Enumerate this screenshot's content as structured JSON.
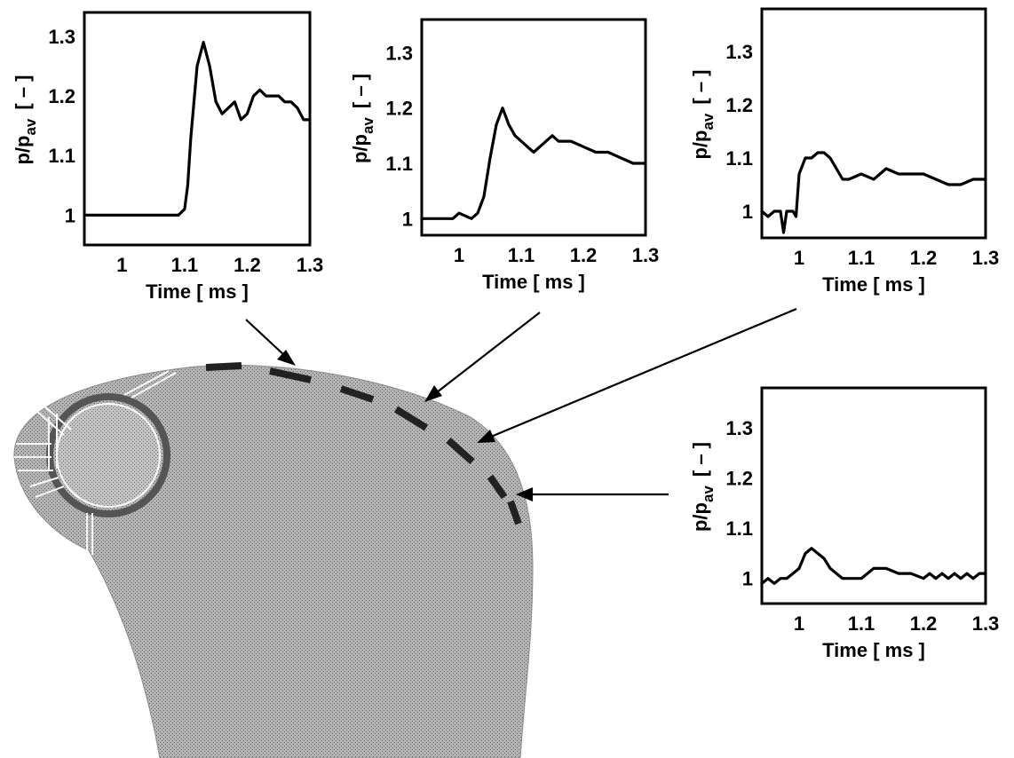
{
  "colors": {
    "body_fill": "#aaaaaa",
    "ink": "#000000",
    "background": "#ffffff"
  },
  "chart_data": [
    {
      "type": "line",
      "title": "",
      "xlabel": "Time [ ms ]",
      "ylabel": "p/p",
      "ylabel_sub": "av",
      "ylabel_unit": "[ – ]",
      "xlim": [
        0.94,
        1.3
      ],
      "ylim": [
        0.95,
        1.34
      ],
      "xticks": [
        "1",
        "1.1",
        "1.2",
        "1.3"
      ],
      "yticks": [
        "1",
        "1.1",
        "1.2",
        "1.3"
      ],
      "series": [
        {
          "x": [
            0.94,
            1.0,
            1.05,
            1.09,
            1.1,
            1.105,
            1.11,
            1.12,
            1.13,
            1.14,
            1.15,
            1.16,
            1.17,
            1.18,
            1.19,
            1.2,
            1.21,
            1.22,
            1.23,
            1.24,
            1.25,
            1.26,
            1.27,
            1.28,
            1.29,
            1.3
          ],
          "y": [
            1.0,
            1.0,
            1.0,
            1.0,
            1.01,
            1.05,
            1.13,
            1.25,
            1.29,
            1.25,
            1.19,
            1.17,
            1.18,
            1.19,
            1.16,
            1.17,
            1.2,
            1.21,
            1.2,
            1.2,
            1.2,
            1.19,
            1.19,
            1.18,
            1.16,
            1.16
          ]
        }
      ]
    },
    {
      "type": "line",
      "title": "",
      "xlabel": "Time [ ms ]",
      "ylabel": "p/p",
      "ylabel_sub": "av",
      "ylabel_unit": "[ – ]",
      "xlim": [
        0.94,
        1.3
      ],
      "ylim": [
        0.97,
        1.36
      ],
      "xticks": [
        "1",
        "1.1",
        "1.2",
        "1.3"
      ],
      "yticks": [
        "1",
        "1.1",
        "1.2",
        "1.3"
      ],
      "series": [
        {
          "x": [
            0.94,
            0.97,
            0.99,
            1.0,
            1.02,
            1.03,
            1.04,
            1.05,
            1.06,
            1.07,
            1.08,
            1.09,
            1.1,
            1.11,
            1.12,
            1.13,
            1.14,
            1.15,
            1.16,
            1.18,
            1.2,
            1.22,
            1.24,
            1.26,
            1.28,
            1.3
          ],
          "y": [
            1.0,
            1.0,
            1.0,
            1.01,
            1.0,
            1.01,
            1.04,
            1.11,
            1.17,
            1.2,
            1.17,
            1.15,
            1.14,
            1.13,
            1.12,
            1.13,
            1.14,
            1.15,
            1.14,
            1.14,
            1.13,
            1.12,
            1.12,
            1.11,
            1.1,
            1.1
          ]
        }
      ]
    },
    {
      "type": "line",
      "title": "",
      "xlabel": "Time [ ms ]",
      "ylabel": "p/p",
      "ylabel_sub": "av",
      "ylabel_unit": "[ – ]",
      "xlim": [
        0.94,
        1.3
      ],
      "ylim": [
        0.95,
        1.38
      ],
      "xticks": [
        "1",
        "1.1",
        "1.2",
        "1.3"
      ],
      "yticks": [
        "1",
        "1.1",
        "1.2",
        "1.3"
      ],
      "series": [
        {
          "x": [
            0.94,
            0.95,
            0.96,
            0.97,
            0.975,
            0.98,
            0.99,
            0.995,
            1.0,
            1.01,
            1.02,
            1.03,
            1.04,
            1.05,
            1.06,
            1.07,
            1.08,
            1.1,
            1.12,
            1.14,
            1.16,
            1.18,
            1.2,
            1.22,
            1.24,
            1.26,
            1.28,
            1.3
          ],
          "y": [
            1.0,
            0.99,
            1.0,
            1.0,
            0.96,
            1.0,
            1.0,
            0.99,
            1.07,
            1.1,
            1.1,
            1.11,
            1.11,
            1.1,
            1.08,
            1.06,
            1.06,
            1.07,
            1.06,
            1.08,
            1.07,
            1.07,
            1.07,
            1.06,
            1.05,
            1.05,
            1.06,
            1.06
          ]
        }
      ]
    },
    {
      "type": "line",
      "title": "",
      "xlabel": "Time [ ms ]",
      "ylabel": "p/p",
      "ylabel_sub": "av",
      "ylabel_unit": "[ – ]",
      "xlim": [
        0.94,
        1.3
      ],
      "ylim": [
        0.95,
        1.38
      ],
      "xticks": [
        "1",
        "1.1",
        "1.2",
        "1.3"
      ],
      "yticks": [
        "1",
        "1.1",
        "1.2",
        "1.3"
      ],
      "series": [
        {
          "x": [
            0.94,
            0.95,
            0.96,
            0.97,
            0.98,
            0.99,
            1.0,
            1.01,
            1.02,
            1.03,
            1.04,
            1.05,
            1.06,
            1.07,
            1.08,
            1.09,
            1.1,
            1.12,
            1.14,
            1.16,
            1.18,
            1.2,
            1.21,
            1.22,
            1.23,
            1.24,
            1.25,
            1.26,
            1.27,
            1.28,
            1.29,
            1.3
          ],
          "y": [
            0.99,
            1.0,
            0.99,
            1.0,
            1.0,
            1.01,
            1.02,
            1.05,
            1.06,
            1.05,
            1.04,
            1.02,
            1.01,
            1.0,
            1.0,
            1.0,
            1.0,
            1.02,
            1.02,
            1.01,
            1.01,
            1.0,
            1.01,
            1.0,
            1.01,
            1.0,
            1.01,
            1.0,
            1.01,
            1.0,
            1.01,
            1.01
          ]
        }
      ]
    }
  ]
}
